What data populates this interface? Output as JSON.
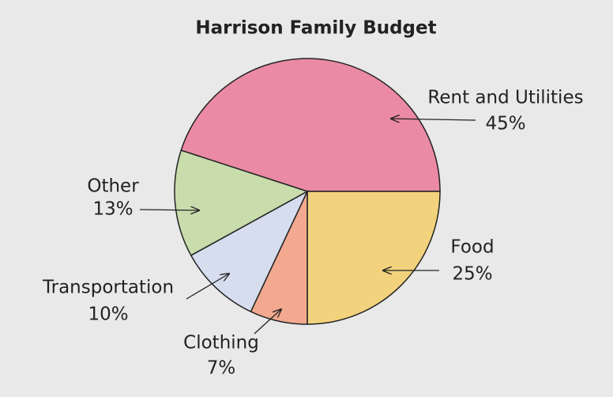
{
  "chart_data": {
    "type": "pie",
    "title": "Harrison Family Budget",
    "categories": [
      "Rent and Utilities",
      "Food",
      "Clothing",
      "Transportation",
      "Other"
    ],
    "values": [
      45,
      25,
      7,
      10,
      13
    ],
    "value_labels": [
      "45%",
      "25%",
      "7%",
      "10%",
      "13%"
    ],
    "colors": [
      "#eb8aa5",
      "#f2d27c",
      "#f2a98f",
      "#d6ddee",
      "#c8dcac"
    ]
  }
}
